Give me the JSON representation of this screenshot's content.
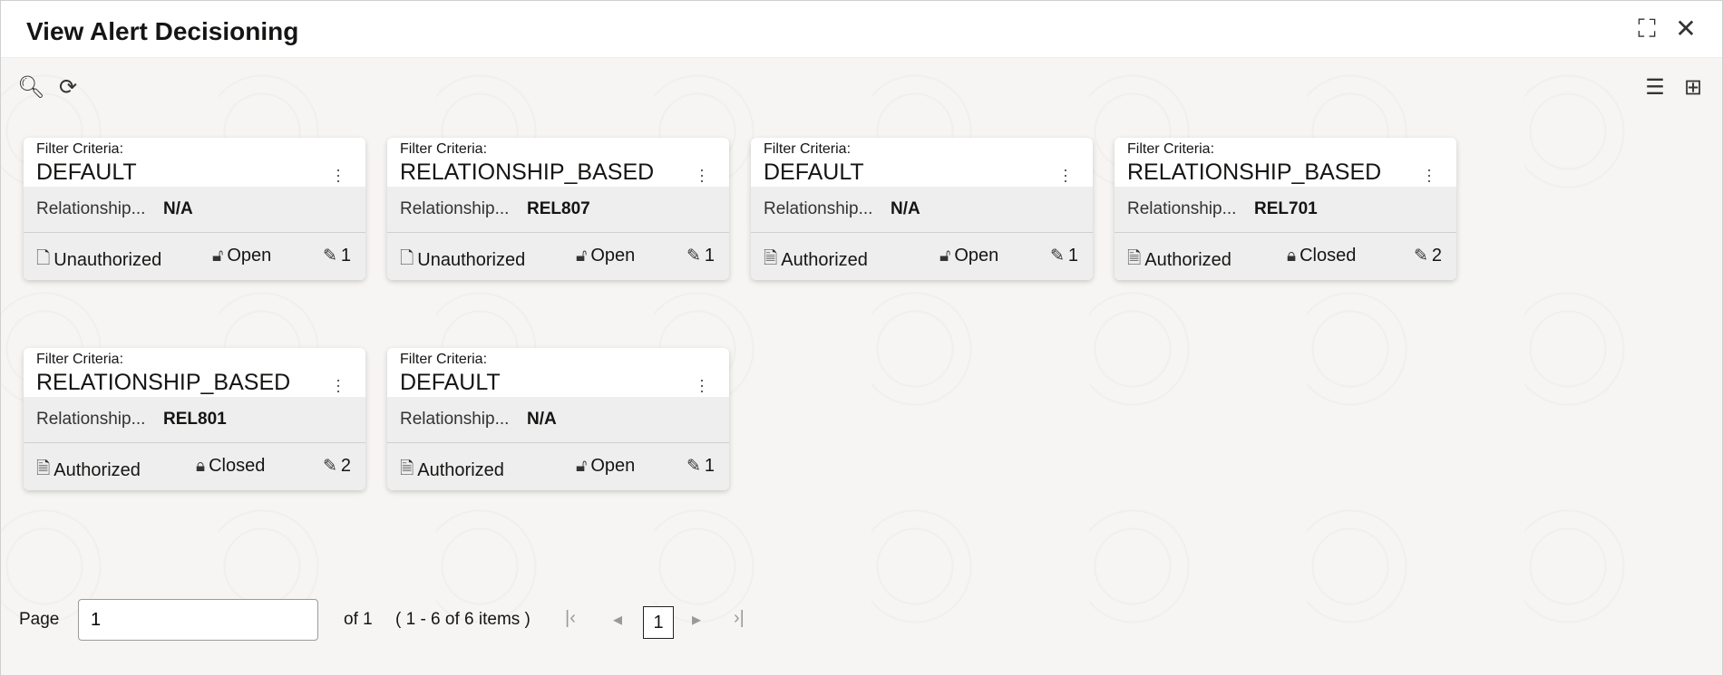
{
  "header": {
    "title": "View Alert Decisioning"
  },
  "cards": [
    {
      "filter_label": "Filter Criteria:",
      "name": "DEFAULT",
      "rel_label": "Relationship...",
      "rel_value": "N/A",
      "auth": "Unauthorized",
      "lock": "Open",
      "count": "1"
    },
    {
      "filter_label": "Filter Criteria:",
      "name": "RELATIONSHIP_BASED",
      "rel_label": "Relationship...",
      "rel_value": "REL807",
      "auth": "Unauthorized",
      "lock": "Open",
      "count": "1"
    },
    {
      "filter_label": "Filter Criteria:",
      "name": "DEFAULT",
      "rel_label": "Relationship...",
      "rel_value": "N/A",
      "auth": "Authorized",
      "lock": "Open",
      "count": "1"
    },
    {
      "filter_label": "Filter Criteria:",
      "name": "RELATIONSHIP_BASED",
      "rel_label": "Relationship...",
      "rel_value": "REL701",
      "auth": "Authorized",
      "lock": "Closed",
      "count": "2"
    },
    {
      "filter_label": "Filter Criteria:",
      "name": "RELATIONSHIP_BASED",
      "rel_label": "Relationship...",
      "rel_value": "REL801",
      "auth": "Authorized",
      "lock": "Closed",
      "count": "2"
    },
    {
      "filter_label": "Filter Criteria:",
      "name": "DEFAULT",
      "rel_label": "Relationship...",
      "rel_value": "N/A",
      "auth": "Authorized",
      "lock": "Open",
      "count": "1"
    }
  ],
  "pagination": {
    "page_label": "Page",
    "page_value": "1",
    "of_text": "of 1",
    "range_text": "( 1 - 6 of 6 items )",
    "current": "1"
  }
}
